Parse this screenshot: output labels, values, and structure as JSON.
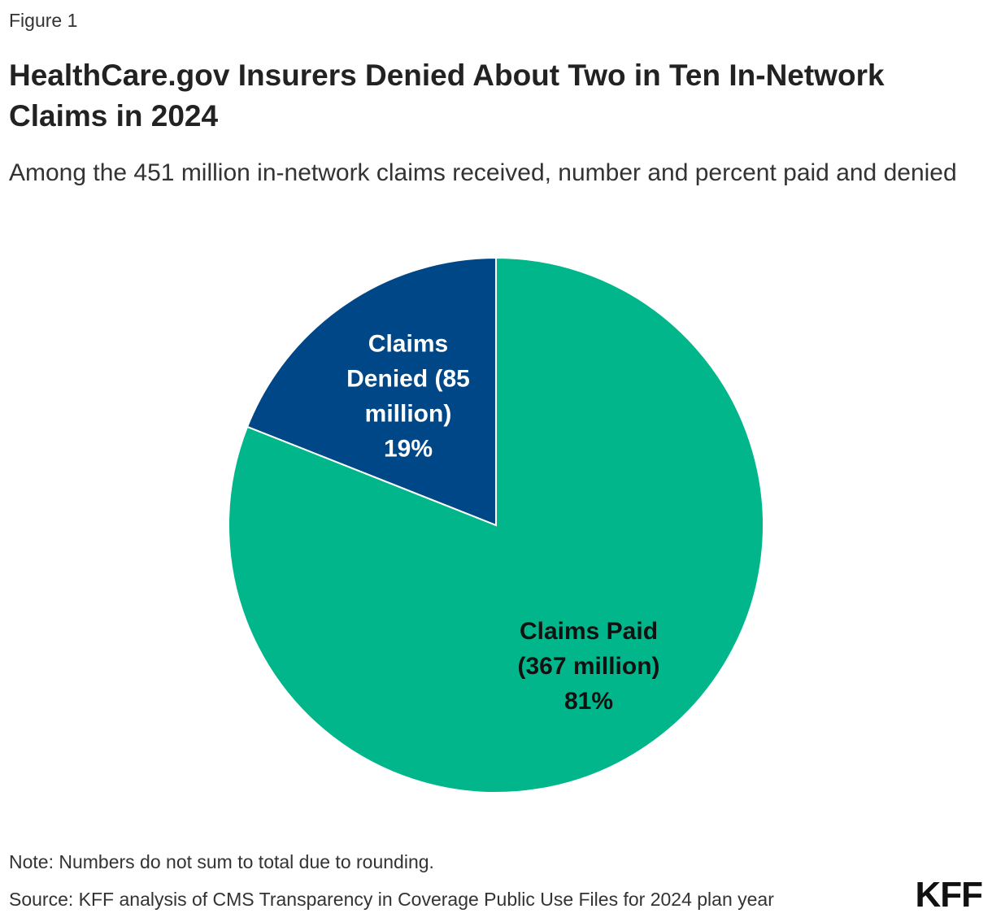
{
  "figure_label": "Figure 1",
  "title": "HealthCare.gov Insurers Denied About Two in Ten In-Network Claims in 2024",
  "subtitle": "Among the 451 million in-network claims received, number and percent paid and denied",
  "note": "Note: Numbers do not sum to total due to rounding.",
  "source": "Source: KFF analysis of CMS Transparency in Coverage Public Use Files for 2024 plan year",
  "logo_text": "KFF",
  "chart_data": {
    "type": "pie",
    "total_claims_millions": 451,
    "slices": [
      {
        "name": "Claims Denied",
        "value_millions": 85,
        "percent": 19,
        "color": "#004787",
        "text_color": "#ffffff",
        "label_lines": [
          "Claims",
          "Denied (85",
          "million)",
          "19%"
        ]
      },
      {
        "name": "Claims Paid",
        "value_millions": 367,
        "percent": 81,
        "color": "#00b68a",
        "text_color": "#111111",
        "label_lines": [
          "Claims Paid",
          "(367 million)",
          "81%"
        ]
      }
    ]
  }
}
